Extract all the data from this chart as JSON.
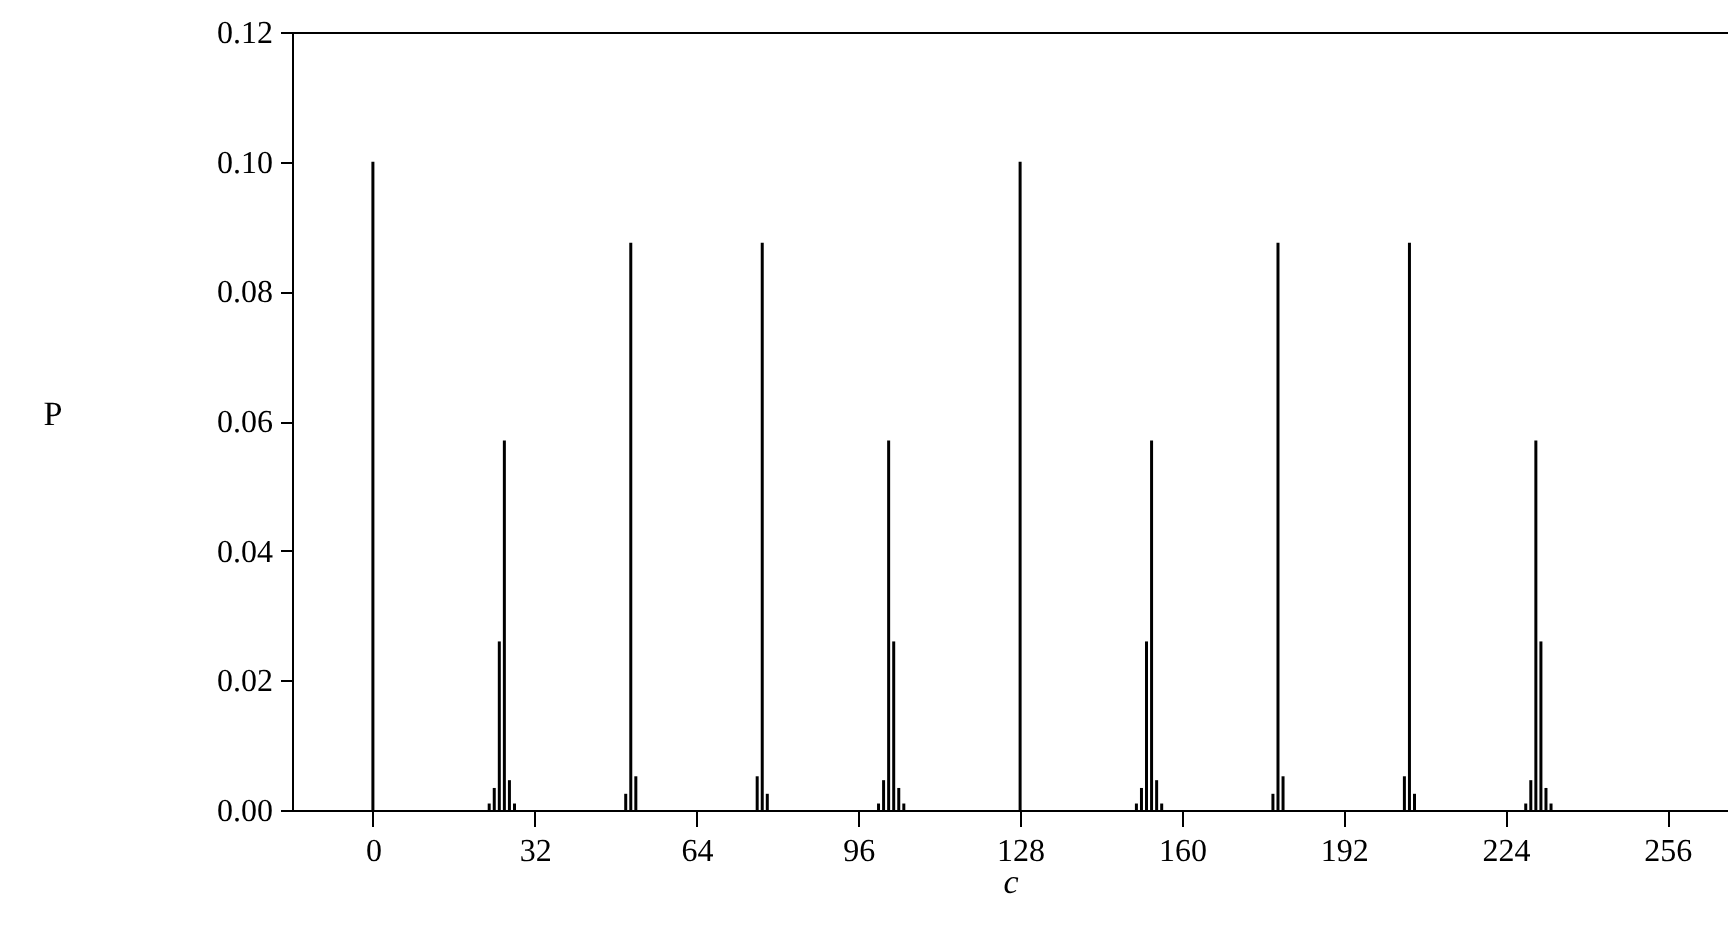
{
  "chart_data": {
    "type": "bar",
    "xlabel": "c",
    "ylabel": "P",
    "color": "#000000",
    "x": [
      0,
      23,
      24,
      25,
      26,
      27,
      28,
      50,
      51,
      52,
      76,
      77,
      78,
      100,
      101,
      102,
      103,
      104,
      105,
      128,
      151,
      152,
      153,
      154,
      155,
      156,
      178,
      179,
      180,
      204,
      205,
      206,
      228,
      229,
      230,
      231,
      232,
      233
    ],
    "values": [
      0.1,
      0.001,
      0.0034,
      0.026,
      0.057,
      0.0046,
      0.001,
      0.0025,
      0.0875,
      0.0052,
      0.0052,
      0.0875,
      0.0025,
      0.001,
      0.0046,
      0.057,
      0.026,
      0.0034,
      0.001,
      0.1,
      0.001,
      0.0034,
      0.026,
      0.057,
      0.0046,
      0.001,
      0.0025,
      0.0875,
      0.0052,
      0.0052,
      0.0875,
      0.0025,
      0.001,
      0.0046,
      0.057,
      0.026,
      0.0034,
      0.001
    ],
    "xlim": [
      -16,
      268
    ],
    "xticks": [
      0,
      32,
      64,
      96,
      128,
      160,
      192,
      224,
      256
    ],
    "ylim": [
      0,
      0.12
    ],
    "yticks": [
      {
        "value": 0,
        "label": "0.00"
      },
      0.02,
      0.04,
      0.06,
      0.08,
      {
        "value": 0.1,
        "label": "0.10"
      },
      0.12
    ],
    "grid": false
  }
}
